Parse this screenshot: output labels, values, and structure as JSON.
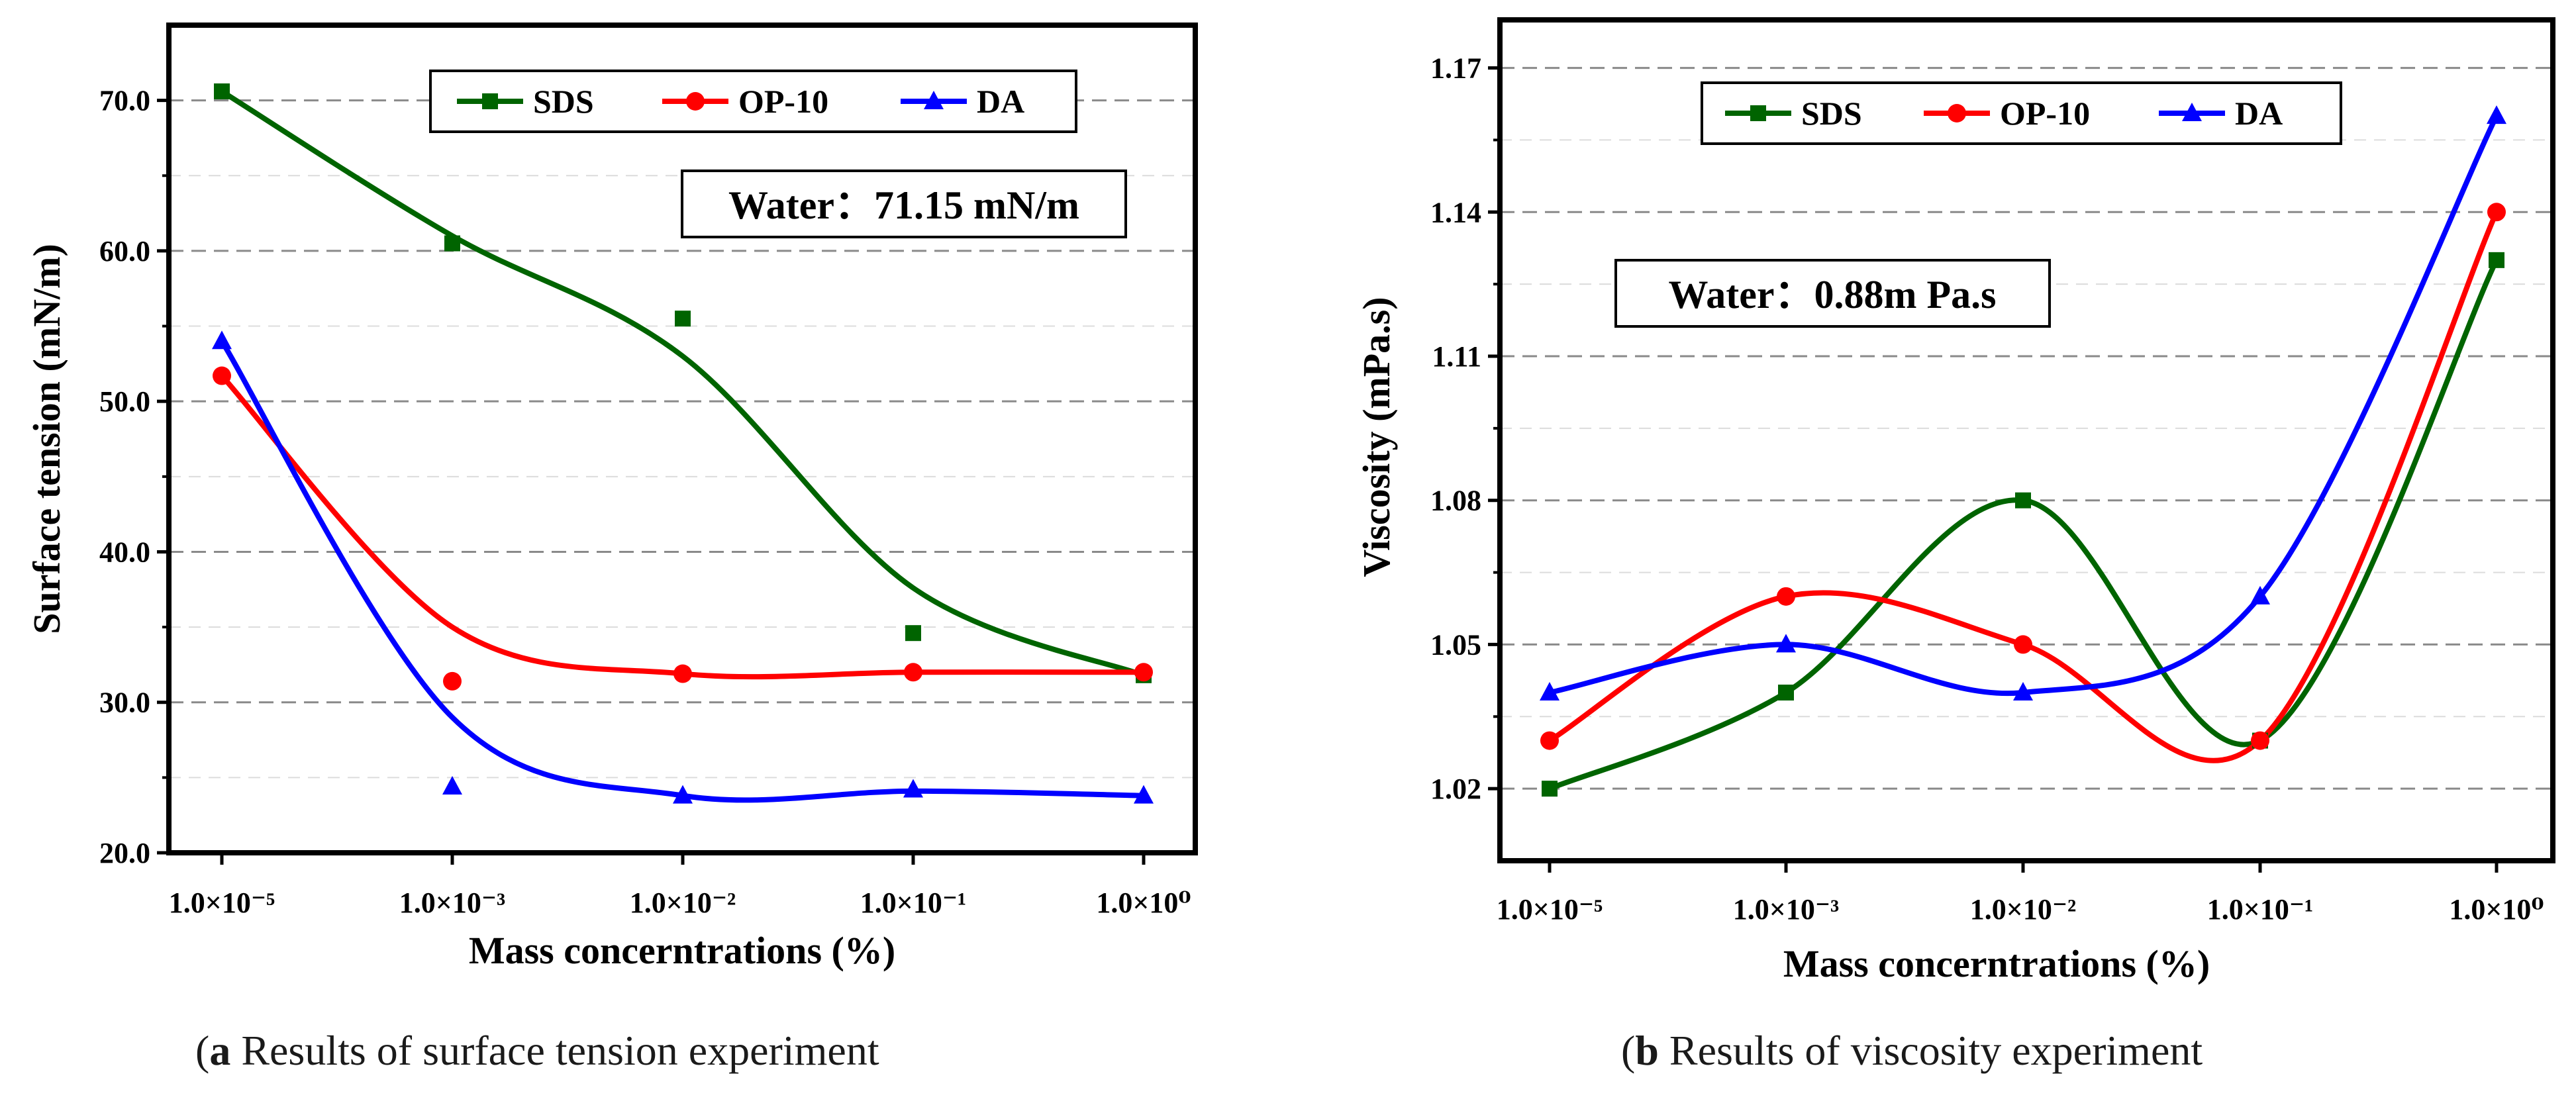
{
  "chart_data": [
    {
      "type": "scatter",
      "panel": "a",
      "xlabel": "Mass concerntrations (%)",
      "ylabel": "Surface tension (mN/m)",
      "xscale": "categorical",
      "categories": [
        "1.0×10⁻⁵",
        "1.0×10⁻³",
        "1.0×10⁻²",
        "1.0×10⁻¹",
        "1.0×10⁰"
      ],
      "ylim": [
        20,
        75
      ],
      "yticks": [
        20,
        30,
        40,
        50,
        60,
        70
      ],
      "ytick_labels": [
        "20.0",
        "30.0",
        "40.0",
        "50.0",
        "60.0",
        "70.0"
      ],
      "grid": "horizontal dashed",
      "legend_position": "top",
      "series": [
        {
          "name": "SDS",
          "color": "#006400",
          "marker": "square",
          "values": [
            70.6,
            60.5,
            55.5,
            34.6,
            31.8
          ],
          "curve": [
            70.6,
            61.0,
            53.0,
            37.6,
            31.8
          ]
        },
        {
          "name": "OP-10",
          "color": "#ff0000",
          "marker": "circle",
          "values": [
            51.7,
            31.4,
            31.9,
            32.0,
            32.0
          ],
          "curve": [
            51.7,
            35.0,
            31.9,
            32.0,
            32.0
          ]
        },
        {
          "name": "DA",
          "color": "#0000ff",
          "marker": "triangle",
          "values": [
            54.0,
            24.4,
            23.8,
            24.2,
            23.8
          ],
          "curve": [
            54.0,
            29.0,
            23.8,
            24.1,
            23.8
          ]
        }
      ],
      "annotation": "Water：71.15 mN/m",
      "caption_label": "a",
      "caption_text": " Results of surface tension experiment"
    },
    {
      "type": "scatter",
      "panel": "b",
      "xlabel": "Mass concerntrations (%)",
      "ylabel": "Viscosity (mPa.s)",
      "xscale": "categorical",
      "categories": [
        "1.0×10⁻⁵",
        "1.0×10⁻³",
        "1.0×10⁻²",
        "1.0×10⁻¹",
        "1.0×10⁰"
      ],
      "ylim": [
        1.005,
        1.18
      ],
      "yticks": [
        1.02,
        1.05,
        1.08,
        1.11,
        1.14,
        1.17
      ],
      "ytick_labels": [
        "1.02",
        "1.05",
        "1.08",
        "1.11",
        "1.14",
        "1.17"
      ],
      "grid": "horizontal dashed",
      "legend_position": "top",
      "series": [
        {
          "name": "SDS",
          "color": "#006400",
          "marker": "square",
          "values": [
            1.02,
            1.04,
            1.08,
            1.03,
            1.13
          ]
        },
        {
          "name": "OP-10",
          "color": "#ff0000",
          "marker": "circle",
          "values": [
            1.03,
            1.06,
            1.05,
            1.03,
            1.14
          ]
        },
        {
          "name": "DA",
          "color": "#0000ff",
          "marker": "triangle",
          "values": [
            1.04,
            1.05,
            1.04,
            1.06,
            1.16
          ]
        }
      ],
      "annotation": "Water：0.88m Pa.s",
      "caption_label": "b",
      "caption_text": " Results of viscosity experiment"
    }
  ]
}
